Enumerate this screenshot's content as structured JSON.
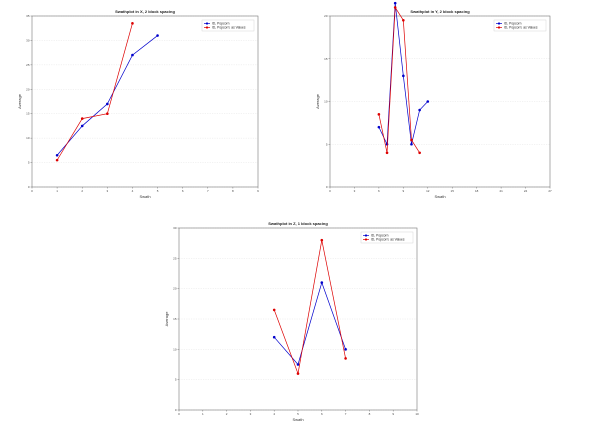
{
  "chart_data": [
    {
      "type": "line",
      "title": "Swathplot in X, 2 block spacing",
      "xlabel": "Swath",
      "ylabel": "Average",
      "xlim": [
        0,
        9
      ],
      "ylim": [
        0,
        35
      ],
      "xticks": [
        0,
        1,
        2,
        3,
        4,
        5,
        6,
        7,
        8,
        9
      ],
      "yticks": [
        0,
        5,
        10,
        15,
        20,
        25,
        30,
        35
      ],
      "grid": true,
      "legend_position": "top-right",
      "series": [
        {
          "name": "ID, Popcorn",
          "color": "#0000cc",
          "x": [
            1,
            2,
            3,
            4,
            5
          ],
          "y": [
            6.5,
            12.5,
            17,
            27,
            31
          ]
        },
        {
          "name": "ID, Popcorn: as Values",
          "color": "#dd0000",
          "x": [
            1,
            2,
            3,
            4
          ],
          "y": [
            5.5,
            14,
            15,
            33.5
          ]
        }
      ]
    },
    {
      "type": "line",
      "title": "Swathplot in Y, 2 block spacing",
      "xlabel": "Swath",
      "ylabel": "Average",
      "xlim": [
        0,
        27
      ],
      "ylim": [
        0,
        20
      ],
      "xticks": [
        0,
        3,
        6,
        9,
        12,
        15,
        18,
        21,
        24,
        27
      ],
      "yticks": [
        0,
        5,
        10,
        15,
        20
      ],
      "grid": true,
      "legend_position": "top-right",
      "series": [
        {
          "name": "ID, Popcorn",
          "color": "#0000cc",
          "x": [
            6,
            7,
            8,
            9,
            10,
            11,
            12
          ],
          "y": [
            7,
            5,
            21.5,
            13,
            5,
            9,
            10
          ]
        },
        {
          "name": "ID, Popcorn: as Values",
          "color": "#dd0000",
          "x": [
            6,
            7,
            8,
            9,
            10,
            11
          ],
          "y": [
            8.5,
            4,
            21,
            19.5,
            5.5,
            4
          ]
        }
      ]
    },
    {
      "type": "line",
      "title": "Swathplot in Z, 1 block spacing",
      "xlabel": "Swath",
      "ylabel": "Average",
      "xlim": [
        0,
        10
      ],
      "ylim": [
        0,
        30
      ],
      "xticks": [
        0,
        1,
        2,
        3,
        4,
        5,
        6,
        7,
        8,
        9,
        10
      ],
      "yticks": [
        0,
        5,
        10,
        15,
        20,
        25,
        30
      ],
      "grid": true,
      "legend_position": "top-right",
      "series": [
        {
          "name": "ID, Popcorn",
          "color": "#0000cc",
          "x": [
            4,
            5,
            6,
            7
          ],
          "y": [
            12,
            7.5,
            21,
            10
          ]
        },
        {
          "name": "ID, Popcorn: as Values",
          "color": "#dd0000",
          "x": [
            4,
            5,
            6,
            7
          ],
          "y": [
            16.5,
            6,
            28,
            8.5
          ]
        }
      ]
    }
  ]
}
